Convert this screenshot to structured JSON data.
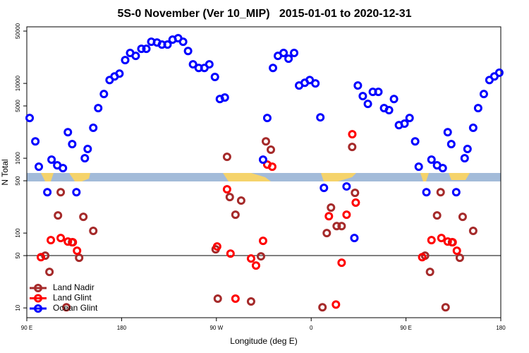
{
  "chart_data": {
    "type": "scatter",
    "title": "5S-0 November (Ver 10_MIP)   2015-01-01 to 2020-12-31",
    "xlabel": "Longitude (deg E)",
    "ylabel": "N Total",
    "log_y": true,
    "legend": "lower left",
    "hline": 50,
    "xlim": [
      90,
      540
    ],
    "xticks": [
      {
        "value": 90,
        "label": "90 E"
      },
      {
        "value": 180,
        "label": "180"
      },
      {
        "value": 270,
        "label": "90 W"
      },
      {
        "value": 360,
        "label": "0"
      },
      {
        "value": 450,
        "label": "90 E"
      },
      {
        "value": 540,
        "label": "180"
      }
    ],
    "ylim": [
      7.4,
      57000
    ],
    "yticks": [
      10,
      50,
      100,
      500,
      1000,
      5000,
      10000,
      50000
    ],
    "series": [
      {
        "name": "Land Nadir",
        "color": "#a52a2a",
        "x": [
          107.5,
          111.5,
          119.6,
          122.2,
          127.6,
          133,
          139.7,
          143.7,
          153.1,
          269.3,
          271.3,
          280.1,
          282.7,
          288.1,
          293.5,
          302.9,
          312.3,
          317,
          321.7,
          370.7,
          374.8,
          378.8,
          384.2,
          388.9,
          398.9,
          401.6,
          468.1,
          472.8,
          479.5,
          482.9,
          487.6,
          493.7,
          501.1,
          503.8,
          513.8
        ],
        "values": [
          49.9,
          30.3,
          172,
          352,
          10.2,
          75.4,
          46.8,
          165,
          107,
          60.7,
          13.3,
          1045,
          303,
          176,
          272,
          12.2,
          48.9,
          1680,
          1300,
          10.2,
          100,
          219,
          124,
          124,
          1415,
          345,
          49.9,
          30.3,
          172,
          352,
          10.2,
          75.4,
          46.8,
          165,
          107
        ]
      },
      {
        "name": "Land Glint",
        "color": "#ff0000",
        "x": [
          103.4,
          112.8,
          122.2,
          129,
          133.7,
          137.7,
          270.7,
          280.1,
          283.4,
          288.1,
          302.9,
          307.6,
          314.3,
          318.3,
          323,
          376.8,
          383.5,
          388.9,
          393.6,
          399,
          402.3,
          465.4,
          474.2,
          483.6,
          489.6,
          494.3,
          498.3
        ],
        "values": [
          47.7,
          80.5,
          85.9,
          77.1,
          75.4,
          58.1,
          66.2,
          385,
          53.2,
          13.3,
          45.7,
          36.8,
          78.7,
          822,
          771,
          168,
          11.1,
          40.2,
          176,
          2095,
          255,
          47.7,
          80.5,
          85.9,
          77.1,
          75.4,
          58.1
        ]
      },
      {
        "name": "Ocean Glint",
        "color": "#0000ff",
        "x": [
          92.7,
          98.1,
          101.4,
          109.5,
          113.5,
          118.9,
          124.3,
          129,
          133.1,
          137.1,
          145.1,
          147.8,
          153.1,
          157.8,
          163.2,
          168.6,
          173.3,
          178,
          183.4,
          188.1,
          193.4,
          198.8,
          203.5,
          208.2,
          213.6,
          218.3,
          223.6,
          228.4,
          233.7,
          238.4,
          243.1,
          247.8,
          253.2,
          258.6,
          263.3,
          268.6,
          273.3,
          278,
          314.3,
          318.3,
          323.7,
          328.4,
          333.8,
          338.5,
          343.8,
          348.5,
          353.9,
          358.6,
          364,
          368.7,
          372.1,
          393.6,
          401,
          404.3,
          409,
          413.8,
          418.5,
          423.8,
          429.2,
          433.9,
          438.6,
          443.3,
          448.6,
          453.4,
          458.7,
          462.1,
          469.4,
          474.2,
          479.5,
          484.9,
          489.6,
          493,
          497.7,
          505.7,
          508.4,
          513.8,
          518.5,
          523.9,
          529.2,
          533.9,
          538.6
        ],
        "values": [
          3450,
          1680,
          771,
          352,
          957,
          805,
          738,
          2230,
          1545,
          352,
          1000,
          1330,
          2550,
          4680,
          7210,
          11100,
          12400,
          13500,
          20500,
          25500,
          23300,
          29000,
          29000,
          36000,
          35200,
          33000,
          33000,
          38400,
          40200,
          36000,
          27100,
          18000,
          16100,
          16100,
          18000,
          12200,
          6190,
          6470,
          957,
          3450,
          16100,
          23300,
          25500,
          21400,
          25500,
          9380,
          10200,
          11100,
          10000,
          3520,
          402,
          420,
          85.9,
          9380,
          6760,
          5320,
          7710,
          7710,
          4680,
          4390,
          6190,
          2770,
          2900,
          3450,
          1680,
          771,
          352,
          957,
          805,
          738,
          2230,
          1545,
          352,
          1000,
          1330,
          2550,
          4680,
          7210,
          11100,
          12400,
          13900
        ]
      }
    ]
  }
}
